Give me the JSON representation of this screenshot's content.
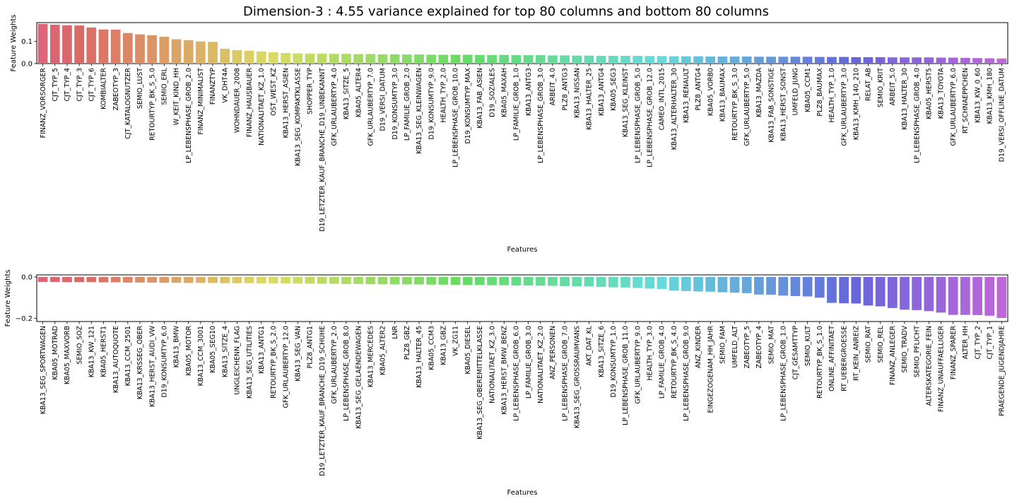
{
  "title": "Dimension-3 : 4.55 variance explained for top 80 columns and bottom 80 columns",
  "chart_data": [
    {
      "type": "bar",
      "xlabel": "Features",
      "ylabel": "Feature Weights",
      "ylim": [
        0,
        0.185
      ],
      "yticks": [
        "0.0",
        "0.1"
      ],
      "ytick_values": [
        0.0,
        0.1
      ],
      "categories": [
        "FINANZ_VORSORGER",
        "CJT_TYP_5",
        "CJT_TYP_4",
        "CJT_TYP_3",
        "CJT_TYP_6",
        "KOMBIALTER",
        "ZABEOTYP_3",
        "CJT_KATALOGNUTZER",
        "SEMIO_LUST",
        "RETOURTYP_BK_S_5.0",
        "SEMIO_ERL",
        "W_KEIT_KIND_HH",
        "LP_LEBENSPHASE_GROB_2.0",
        "FINANZ_MINIMALIST",
        "FINANZTYP",
        "VK_DHT4A",
        "WOHNDAUER_2008",
        "FINANZ_HAUSBAUER",
        "NATIONALITAET_KZ_1.0",
        "OST_WEST_KZ",
        "KBA13_HERST_ASIEN",
        "KBA13_SEG_KOMPAKTKLASSE",
        "SHOPPER_TYP",
        "D19_LETZTER_KAUF_BRANCHE_D19_UNBEKANNT",
        "GFK_URLAUBERTYP_4.0",
        "KBA13_SITZE_5",
        "KBA05_ALTER4",
        "GFK_URLAUBERTYP_7.0",
        "D19_VERSI_DATUM",
        "D19_KONSUMTYP_3.0",
        "LP_FAMILIE_GROB_2.0",
        "KBA13_SEG_KLEINWAGEN",
        "D19_KONSUMTYP_9.0",
        "HEALTH_TYP_2.0",
        "LP_LEBENSPHASE_GROB_10.0",
        "D19_KONSUMTYP_MAX",
        "KBA13_FAB_ASIEN",
        "D19_SOZIALES",
        "KBA05_MAXAH",
        "LP_FAMILIE_GROB_1.0",
        "KBA13_ANTG3",
        "LP_LEBENSPHASE_GROB_3.0",
        "ARBEIT_4.0",
        "PLZ8_ANTG3",
        "KBA13_NISSAN",
        "KBA13_HALTER_25",
        "KBA13_ANTG4",
        "KBA05_SEG3",
        "KBA13_SEG_KLEINST",
        "LP_LEBENSPHASE_GROB_5.0",
        "LP_LEBENSPHASE_GROB_12.0",
        "CAMEO_INTL_2015",
        "KBA13_ALTERHALTER_30",
        "KBA13_RENAULT",
        "PLZ8_ANTG4",
        "KBA05_VORB0",
        "KBA13_BAUMAX",
        "RETOURTYP_BK_S_3.0",
        "GFK_URLAUBERTYP_5.0",
        "KBA13_MAZDA",
        "KBA13_FAB_SONSTIGE",
        "KBA13_HERST_SONST",
        "UMFELD_JUNG",
        "KBA05_CCM1",
        "PLZ8_BAUMAX",
        "HEALTH_TYP_1.0",
        "GFK_URLAUBERTYP_3.0",
        "KBA13_KMH_140_210",
        "RELAT_AB",
        "SEMIO_KRIT",
        "ARBEIT_5.0",
        "KBA13_HALTER_30",
        "LP_LEBENSPHASE_GROB_4.0",
        "KBA05_HERST5",
        "KBA13_TOYOTA",
        "GFK_URLAUBERTYP_6.0",
        "RT_SCHNAEPPCHEN",
        "KBA13_KW_0_60",
        "KBA13_KMH_180",
        "D19_VERSI_OFFLINE_DATUM"
      ],
      "values": [
        0.179,
        0.176,
        0.173,
        0.172,
        0.163,
        0.154,
        0.153,
        0.138,
        0.132,
        0.128,
        0.121,
        0.11,
        0.106,
        0.1,
        0.098,
        0.067,
        0.061,
        0.058,
        0.055,
        0.051,
        0.048,
        0.046,
        0.045,
        0.045,
        0.044,
        0.044,
        0.043,
        0.043,
        0.042,
        0.042,
        0.041,
        0.041,
        0.04,
        0.04,
        0.04,
        0.04,
        0.039,
        0.039,
        0.039,
        0.038,
        0.038,
        0.038,
        0.037,
        0.037,
        0.036,
        0.036,
        0.035,
        0.035,
        0.035,
        0.035,
        0.034,
        0.034,
        0.033,
        0.033,
        0.033,
        0.032,
        0.032,
        0.032,
        0.032,
        0.031,
        0.031,
        0.031,
        0.031,
        0.031,
        0.03,
        0.03,
        0.03,
        0.029,
        0.029,
        0.029,
        0.028,
        0.028,
        0.028,
        0.028,
        0.027,
        0.027,
        0.026,
        0.025,
        0.024,
        0.023
      ]
    },
    {
      "type": "bar",
      "xlabel": "Features",
      "ylabel": "Feature Weights",
      "ylim": [
        -0.215,
        0.01
      ],
      "yticks": [
        "0.0",
        "−0.2"
      ],
      "ytick_values": [
        0.0,
        -0.2
      ],
      "categories": [
        "KBA13_SEG_SPORTWAGEN",
        "KBA05_MOTRAD",
        "KBA05_MAXVORB",
        "SEMIO_SOZ",
        "KBA13_KW_121",
        "KBA05_HERST1",
        "KBA13_AUTOQUOTE",
        "KBA13_CCM_2501",
        "KBA13_KRSSEG_OBER",
        "KBA13_HERST_AUDI_VW",
        "D19_KONSUMTYP_6.0",
        "KBA13_BMW",
        "KBA05_MOTOR",
        "KBA13_CCM_3001",
        "KBA05_SEG10",
        "KBA13_SITZE_4",
        "UNGLEICHENN_FLAG",
        "KBA13_SEG_UTILITIES",
        "KBA13_ANTG1",
        "RETOURTYP_BK_S_2.0",
        "GFK_URLAUBERTYP_12.0",
        "KBA13_SEG_VAN",
        "PLZ8_ANTG1",
        "D19_LETZTER_KAUF_BRANCHE_D19_SCHUHE",
        "GFK_URLAUBERTYP_2.0",
        "LP_LEBENSPHASE_GROB_8.0",
        "KBA13_SEG_GELAENDEWAGEN",
        "KBA13_MERCEDES",
        "KBA05_ALTER2",
        "LNR",
        "PLZ8_GBZ",
        "KBA13_HALTER_45",
        "KBA05_CCM3",
        "KBA13_GBZ",
        "VK_ZG11",
        "KBA05_DIESEL",
        "KBA13_SEG_OBEREMITTELKLASSE",
        "NATIONALITAET_KZ_3.0",
        "KBA13_HERST_BMW_BENZ",
        "LP_LEBENSPHASE_GROB_6.0",
        "LP_FAMILIE_GROB_3.0",
        "NATIONALITAET_KZ_2.0",
        "ANZ_PERSONEN",
        "LP_LEBENSPHASE_GROB_7.0",
        "KBA13_SEG_GROSSRAUMVANS",
        "AKT_DAT_KL",
        "KBA13_SITZE_6",
        "D19_KONSUMTYP_1.0",
        "LP_LEBENSPHASE_GROB_11.0",
        "GFK_URLAUBERTYP_9.0",
        "HEALTH_TYP_3.0",
        "LP_FAMILIE_GROB_4.0",
        "RETOURTYP_BK_S_4.0",
        "LP_LEBENSPHASE_GROB_9.0",
        "ANZ_KINDER",
        "EINGEZOGENAM_HH_JAHR",
        "SEMIO_FAM",
        "UMFELD_ALT",
        "ZABEOTYP_5",
        "ZABEOTYP_4",
        "SEMIO_MAT",
        "LP_LEBENSPHASE_GROB_1.0",
        "CJT_GESAMTTYP",
        "SEMIO_KULT",
        "RETOURTYP_BK_S_1.0",
        "ONLINE_AFFINITAET",
        "RT_UEBERGROESSE",
        "RT_KEIN_ANREIZ",
        "SEMIO_RAT",
        "SEMIO_REL",
        "FINANZ_ANLEGER",
        "SEMIO_TRADV",
        "SEMIO_PFLICHT",
        "ALTERSKATEGORIE_FEIN",
        "FINANZ_UNAUFFAELLIGER",
        "FINANZ_SPARER",
        "ALTER_HH",
        "CJT_TYP_2",
        "CJT_TYP_1",
        "PRAEGENDE_JUGENDJAHRE"
      ],
      "values": [
        -0.024,
        -0.024,
        -0.025,
        -0.025,
        -0.025,
        -0.026,
        -0.026,
        -0.027,
        -0.027,
        -0.027,
        -0.028,
        -0.028,
        -0.029,
        -0.029,
        -0.029,
        -0.03,
        -0.03,
        -0.03,
        -0.031,
        -0.031,
        -0.031,
        -0.032,
        -0.032,
        -0.033,
        -0.033,
        -0.034,
        -0.034,
        -0.035,
        -0.035,
        -0.036,
        -0.036,
        -0.036,
        -0.037,
        -0.037,
        -0.038,
        -0.039,
        -0.039,
        -0.04,
        -0.04,
        -0.041,
        -0.041,
        -0.042,
        -0.043,
        -0.044,
        -0.045,
        -0.046,
        -0.048,
        -0.05,
        -0.051,
        -0.053,
        -0.056,
        -0.058,
        -0.066,
        -0.068,
        -0.07,
        -0.071,
        -0.074,
        -0.076,
        -0.078,
        -0.085,
        -0.086,
        -0.09,
        -0.092,
        -0.094,
        -0.1,
        -0.125,
        -0.127,
        -0.128,
        -0.138,
        -0.142,
        -0.15,
        -0.158,
        -0.16,
        -0.165,
        -0.172,
        -0.183,
        -0.183,
        -0.184,
        -0.187,
        -0.198
      ]
    }
  ]
}
